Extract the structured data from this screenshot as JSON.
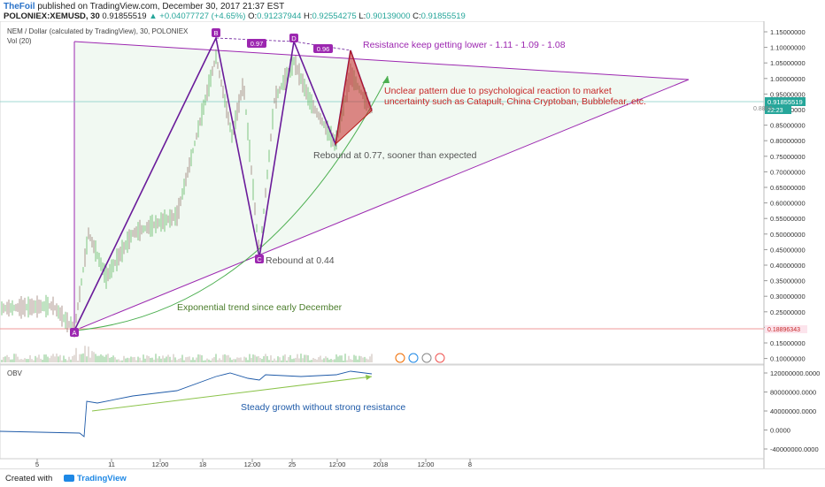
{
  "header": {
    "author": "TheFoil",
    "published": " published on TradingView.com, December 30, 2017 21:37 EST",
    "symbol": "POLONIEX:XEMUSD, 30",
    "last": "0.91855519",
    "change_arrow": "▲",
    "change": "+0.04077727 (+4.65%)",
    "o_label": "O:",
    "o_val": "0.91237944",
    "h_label": "H:",
    "h_val": "0.92554275",
    "l_label": "L:",
    "l_val": "0.90139000",
    "c_label": "C:",
    "c_val": "0.91855519"
  },
  "main_pane": {
    "title": "NEM / Dollar (calculated by TradingView), 30, POLONIEX",
    "indicator": "Vol (20)",
    "price_ticks": [
      "1.15000000",
      "1.10000000",
      "1.05000000",
      "1.00000000",
      "0.95000000",
      "0.90000000",
      "0.85000000",
      "0.80000000",
      "0.75000000",
      "0.70000000",
      "0.65000000",
      "0.60000000",
      "0.55000000",
      "0.50000000",
      "0.45000000",
      "0.40000000",
      "0.35000000",
      "0.30000000",
      "0.25000000",
      "0.20000000",
      "0.15000000",
      "0.10000000"
    ],
    "last_price_label": "0.91855519",
    "countdown_label": "22:23",
    "hline_label": "0.18896343",
    "extra_label": "0.8860"
  },
  "obv_pane": {
    "title": "OBV",
    "ticks": [
      "120000000.0000",
      "80000000.0000",
      "40000000.0000",
      "0.0000",
      "-40000000.0000"
    ]
  },
  "time_axis": [
    "5",
    "11",
    "12:00",
    "18",
    "12:00",
    "25",
    "12:00",
    "2018",
    "12:00",
    "8"
  ],
  "annotations": {
    "resistance": "Resistance keep getting lower - 1.11 - 1.09 - 1.08",
    "unclear_line1": "Unclear pattern due to psychological reaction to market",
    "unclear_line2": "uncertainty such as Catapult, China Cryptoban, Bubblefear, etc.",
    "rebound077": "Rebound at 0.77, sooner than expected",
    "rebound044": "Rebound at 0.44",
    "exponential": "Exponential trend since early December",
    "steady": "Steady growth without strong resistance",
    "label_a": "A",
    "label_b": "B",
    "label_c": "C",
    "label_d": "D",
    "ratio1": "0.97",
    "ratio2": "0.96"
  },
  "footer": {
    "created_with": "Created with",
    "brand": "TradingView"
  },
  "colors": {
    "pattern": "#9c27b0",
    "trend_green": "#4caf50",
    "annotation_red": "#c62828",
    "candle_up": "#4caf50",
    "candle_down": "#8d6e63"
  }
}
